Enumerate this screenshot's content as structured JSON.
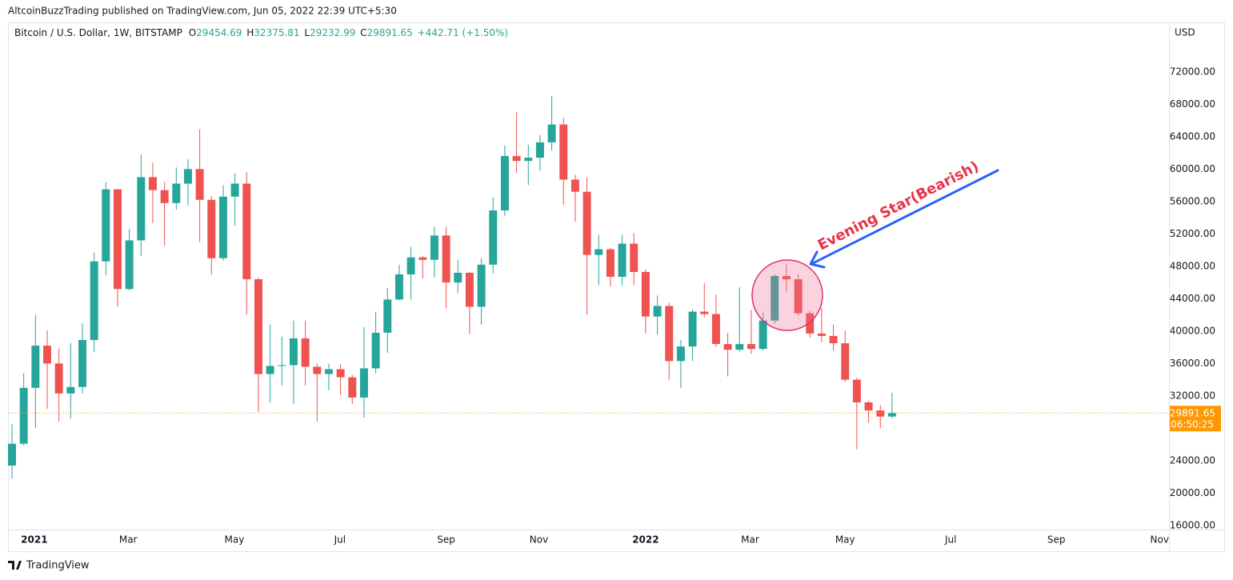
{
  "header": {
    "publisher": "AltcoinBuzzTrading published on TradingView.com, Jun 05, 2022 22:39 UTC+5:30"
  },
  "footer": {
    "brand": "TradingView"
  },
  "chart_data": {
    "type": "candlestick",
    "symbol": "Bitcoin / U.S. Dollar, 1W, BITSTAMP",
    "ohlc_letters": [
      "O",
      "H",
      "L",
      "C"
    ],
    "change": "+442.71 (+1.50%)",
    "currency": "USD",
    "countdown": "06:50:25",
    "annotation": "Evening Star(Bearish)",
    "up_color": "#26a69a",
    "down_color": "#ef5350",
    "open": [
      23400,
      26100,
      33000,
      38200,
      36000,
      32300,
      33100,
      38900,
      48600,
      57500,
      45200,
      51200,
      59000,
      57400,
      55800,
      58200,
      60000,
      56200,
      49000,
      56600,
      58200,
      46400,
      34700,
      35700,
      35800,
      39100,
      35600,
      34700,
      35300,
      34300,
      31800,
      35400,
      39800,
      43900,
      47000,
      49100,
      48800,
      51800,
      46000,
      47200,
      43000,
      48200,
      54900,
      61600,
      61000,
      61400,
      63300,
      65500,
      58700,
      57200,
      49400,
      50100,
      46700,
      50800,
      47300,
      41800,
      43100,
      36300,
      38100,
      42400,
      42100,
      38400,
      37700,
      38400,
      37800,
      41300,
      46800,
      46400,
      42200,
      39700,
      39400,
      38500,
      34000,
      31200,
      30200,
      29454.69
    ],
    "high": [
      28500,
      34800,
      42000,
      40100,
      37850,
      38500,
      40950,
      49700,
      58350,
      57500,
      52600,
      61800,
      60800,
      58400,
      60200,
      61200,
      64900,
      56700,
      58000,
      59500,
      59600,
      46600,
      40800,
      39300,
      41300,
      41300,
      36000,
      36000,
      35900,
      34600,
      40500,
      42400,
      45300,
      48200,
      50400,
      49300,
      52900,
      52900,
      48800,
      47300,
      49000,
      56500,
      62900,
      67000,
      63000,
      64200,
      69000,
      66300,
      59300,
      59000,
      51900,
      50300,
      51900,
      52100,
      47600,
      44400,
      43500,
      38900,
      42700,
      45900,
      44500,
      39800,
      45400,
      42600,
      42300,
      47000,
      48200,
      47000,
      42500,
      42900,
      40800,
      40000,
      34200,
      31400,
      30900,
      32375.81
    ],
    "low": [
      21800,
      25900,
      28000,
      30400,
      28800,
      29200,
      32300,
      37400,
      46900,
      43000,
      45000,
      49300,
      53300,
      50500,
      55000,
      55500,
      51000,
      47000,
      48700,
      53000,
      42000,
      30000,
      31200,
      33300,
      31000,
      33300,
      28800,
      32700,
      32100,
      31000,
      29300,
      34800,
      37300,
      43800,
      43900,
      46500,
      46600,
      42800,
      44700,
      39600,
      40800,
      47100,
      54200,
      59500,
      58000,
      59800,
      62300,
      55600,
      53500,
      42000,
      45700,
      45500,
      45600,
      45700,
      39700,
      39600,
      34000,
      33000,
      36300,
      41700,
      38000,
      34400,
      37500,
      37200,
      37600,
      40900,
      44900,
      41900,
      39200,
      38600,
      37600,
      33700,
      25400,
      28700,
      28000,
      29232.99
    ],
    "close": [
      26100,
      33000,
      38200,
      36000,
      32300,
      33100,
      38900,
      48600,
      57500,
      45200,
      51200,
      59000,
      57400,
      55800,
      58200,
      60000,
      56200,
      49000,
      56600,
      58200,
      46400,
      34700,
      35700,
      35800,
      39100,
      35600,
      34700,
      35300,
      34300,
      31800,
      35400,
      39800,
      43900,
      47000,
      49100,
      48800,
      51800,
      46000,
      47200,
      43000,
      48200,
      54900,
      61600,
      61000,
      61400,
      63300,
      65500,
      58700,
      57200,
      49400,
      50100,
      46700,
      50800,
      47300,
      41800,
      43100,
      36300,
      38100,
      42400,
      42100,
      38400,
      37700,
      38400,
      37800,
      41300,
      46800,
      46400,
      42200,
      39700,
      39400,
      38500,
      34000,
      31200,
      30200,
      29450,
      29891.65
    ],
    "xlim": [
      -0.34,
      98.6
    ],
    "xticks": [
      {
        "value": 1.9,
        "label": "2021"
      },
      {
        "value": 9.9,
        "label": "Mar"
      },
      {
        "value": 18.95,
        "label": "May"
      },
      {
        "value": 27.95,
        "label": "Jul"
      },
      {
        "value": 37.0,
        "label": "Sep"
      },
      {
        "value": 44.9,
        "label": "Nov"
      },
      {
        "value": 54.0,
        "label": "2022"
      },
      {
        "value": 62.9,
        "label": "Mar"
      },
      {
        "value": 71.0,
        "label": "May"
      },
      {
        "value": 80.0,
        "label": "Jul"
      },
      {
        "value": 89.0,
        "label": "Sep"
      },
      {
        "value": 97.8,
        "label": "Nov"
      }
    ],
    "ylim": [
      15500,
      78100
    ],
    "yticks": [
      {
        "value": 16000,
        "label": "16000.00"
      },
      {
        "value": 20000,
        "label": "20000.00"
      },
      {
        "value": 24000,
        "label": "24000.00"
      },
      {
        "value": 32000,
        "label": "32000.00"
      },
      {
        "value": 36000,
        "label": "36000.00"
      },
      {
        "value": 40000,
        "label": "40000.00"
      },
      {
        "value": 44000,
        "label": "44000.00"
      },
      {
        "value": 48000,
        "label": "48000.00"
      },
      {
        "value": 52000,
        "label": "52000.00"
      },
      {
        "value": 56000,
        "label": "56000.00"
      },
      {
        "value": 60000,
        "label": "60000.00"
      },
      {
        "value": 64000,
        "label": "64000.00"
      },
      {
        "value": 68000,
        "label": "68000.00"
      },
      {
        "value": 72000,
        "label": "72000.00"
      }
    ],
    "grid": false
  }
}
